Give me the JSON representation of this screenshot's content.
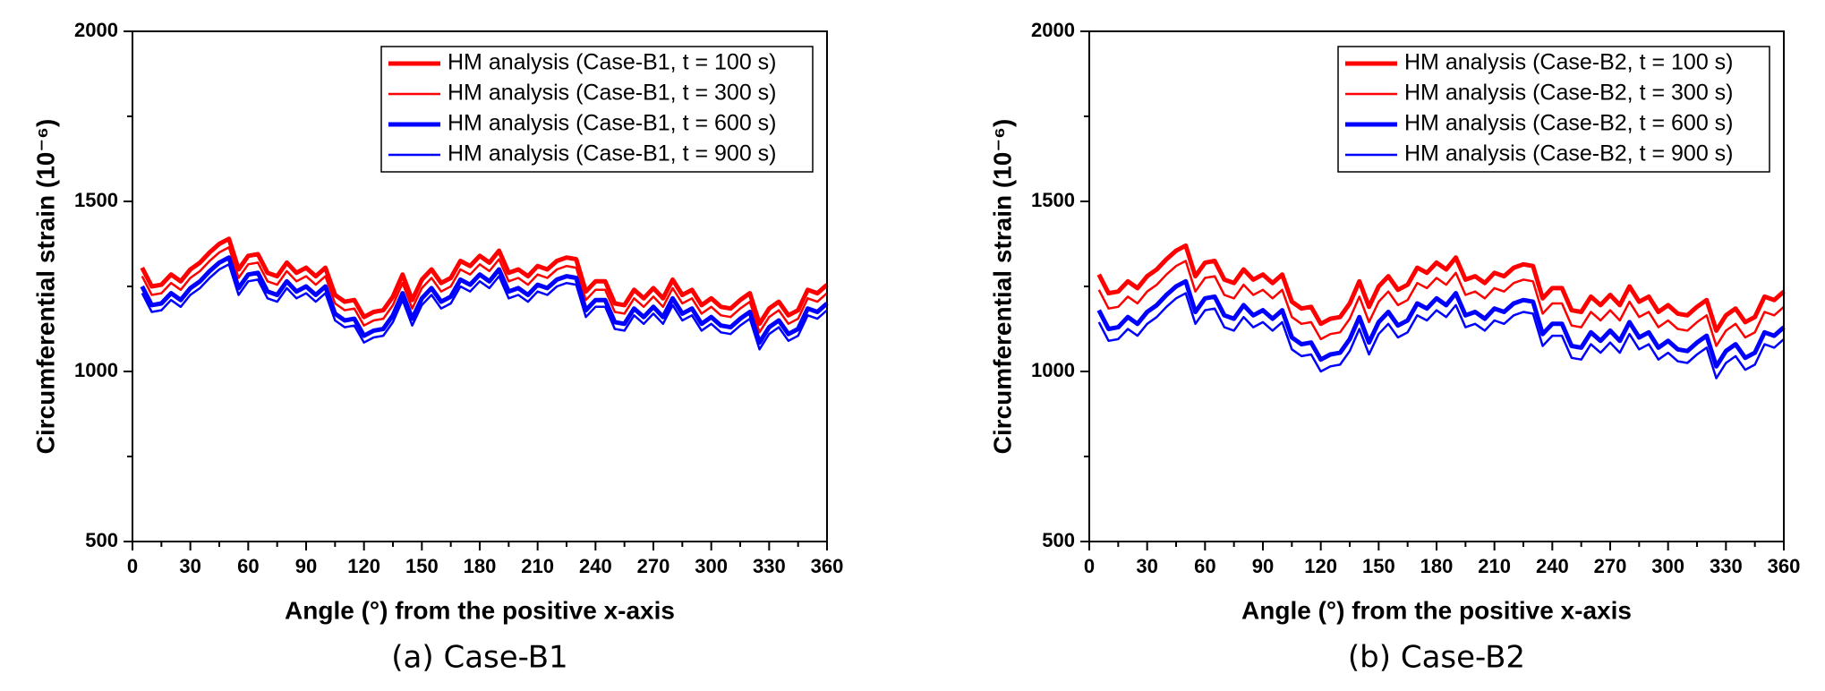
{
  "chart_data": [
    {
      "type": "line",
      "caption": "(a) Case-B1",
      "xlabel": "Angle (°) from the positive x-axis",
      "ylabel": "Circumferential strain (10⁻⁶)",
      "xlim": [
        0,
        360
      ],
      "xticks": [
        0,
        30,
        60,
        90,
        120,
        150,
        180,
        210,
        240,
        270,
        300,
        330,
        360
      ],
      "ylim": [
        500,
        2000
      ],
      "yticks": [
        500,
        1000,
        1500,
        2000
      ],
      "legend": "upper right",
      "x": [
        5,
        10,
        15,
        20,
        25,
        30,
        35,
        40,
        45,
        50,
        55,
        60,
        65,
        70,
        75,
        80,
        85,
        90,
        95,
        100,
        105,
        110,
        115,
        120,
        125,
        130,
        135,
        140,
        145,
        150,
        155,
        160,
        165,
        170,
        175,
        180,
        185,
        190,
        195,
        200,
        205,
        210,
        215,
        220,
        225,
        230,
        235,
        240,
        245,
        250,
        255,
        260,
        265,
        270,
        275,
        280,
        285,
        290,
        295,
        300,
        305,
        310,
        315,
        320,
        325,
        330,
        335,
        340,
        345,
        350,
        355,
        360
      ],
      "series": [
        {
          "name": "HM analysis (Case-B1, t = 100 s)",
          "color": "#ff0000",
          "linewidth": 5,
          "values": [
            1305,
            1250,
            1255,
            1285,
            1265,
            1300,
            1320,
            1350,
            1375,
            1390,
            1300,
            1340,
            1345,
            1290,
            1280,
            1320,
            1290,
            1305,
            1280,
            1305,
            1225,
            1205,
            1210,
            1160,
            1175,
            1180,
            1220,
            1285,
            1210,
            1270,
            1300,
            1260,
            1275,
            1325,
            1310,
            1340,
            1320,
            1355,
            1290,
            1300,
            1280,
            1310,
            1300,
            1325,
            1335,
            1330,
            1235,
            1265,
            1265,
            1200,
            1195,
            1240,
            1215,
            1245,
            1215,
            1270,
            1225,
            1240,
            1195,
            1215,
            1190,
            1185,
            1210,
            1230,
            1140,
            1185,
            1205,
            1165,
            1180,
            1240,
            1230,
            1255
          ]
        },
        {
          "name": "HM analysis (Case-B1, t = 300 s)",
          "color": "#ff0000",
          "linewidth": 2.5,
          "values": [
            1280,
            1225,
            1230,
            1260,
            1240,
            1275,
            1295,
            1325,
            1350,
            1365,
            1275,
            1315,
            1320,
            1265,
            1255,
            1295,
            1265,
            1280,
            1255,
            1280,
            1200,
            1180,
            1185,
            1135,
            1150,
            1155,
            1195,
            1260,
            1185,
            1245,
            1275,
            1235,
            1250,
            1300,
            1285,
            1315,
            1295,
            1330,
            1265,
            1275,
            1255,
            1285,
            1275,
            1300,
            1310,
            1305,
            1210,
            1240,
            1240,
            1175,
            1170,
            1215,
            1190,
            1220,
            1190,
            1245,
            1200,
            1215,
            1170,
            1190,
            1165,
            1160,
            1185,
            1205,
            1115,
            1160,
            1180,
            1140,
            1155,
            1215,
            1205,
            1230
          ]
        },
        {
          "name": "HM analysis (Case-B1, t = 600 s)",
          "color": "#0000ff",
          "linewidth": 5,
          "values": [
            1250,
            1195,
            1200,
            1230,
            1210,
            1245,
            1265,
            1295,
            1320,
            1335,
            1245,
            1285,
            1290,
            1235,
            1225,
            1265,
            1235,
            1250,
            1225,
            1250,
            1170,
            1150,
            1155,
            1105,
            1120,
            1125,
            1165,
            1230,
            1155,
            1215,
            1245,
            1205,
            1220,
            1270,
            1255,
            1285,
            1265,
            1300,
            1235,
            1245,
            1225,
            1255,
            1245,
            1270,
            1280,
            1275,
            1180,
            1210,
            1210,
            1145,
            1140,
            1185,
            1160,
            1190,
            1160,
            1215,
            1170,
            1185,
            1140,
            1160,
            1135,
            1130,
            1155,
            1175,
            1085,
            1130,
            1150,
            1110,
            1125,
            1185,
            1175,
            1200
          ]
        },
        {
          "name": "HM analysis (Case-B1, t = 900 s)",
          "color": "#0000ff",
          "linewidth": 2.5,
          "values": [
            1230,
            1175,
            1180,
            1210,
            1190,
            1225,
            1245,
            1275,
            1300,
            1315,
            1225,
            1265,
            1270,
            1215,
            1205,
            1245,
            1215,
            1230,
            1205,
            1230,
            1150,
            1130,
            1135,
            1085,
            1100,
            1105,
            1145,
            1210,
            1135,
            1195,
            1225,
            1185,
            1200,
            1250,
            1235,
            1265,
            1245,
            1280,
            1215,
            1225,
            1205,
            1235,
            1225,
            1250,
            1260,
            1255,
            1160,
            1190,
            1190,
            1125,
            1120,
            1165,
            1140,
            1170,
            1140,
            1195,
            1150,
            1165,
            1120,
            1140,
            1115,
            1110,
            1135,
            1155,
            1065,
            1110,
            1130,
            1090,
            1105,
            1165,
            1155,
            1180
          ]
        }
      ]
    },
    {
      "type": "line",
      "caption": "(b) Case-B2",
      "xlabel": "Angle (°) from the positive x-axis",
      "ylabel": "Circumferential strain (10⁻⁶)",
      "xlim": [
        0,
        360
      ],
      "xticks": [
        0,
        30,
        60,
        90,
        120,
        150,
        180,
        210,
        240,
        270,
        300,
        330,
        360
      ],
      "ylim": [
        500,
        2000
      ],
      "yticks": [
        500,
        1000,
        1500,
        2000
      ],
      "legend": "upper right",
      "x": [
        5,
        10,
        15,
        20,
        25,
        30,
        35,
        40,
        45,
        50,
        55,
        60,
        65,
        70,
        75,
        80,
        85,
        90,
        95,
        100,
        105,
        110,
        115,
        120,
        125,
        130,
        135,
        140,
        145,
        150,
        155,
        160,
        165,
        170,
        175,
        180,
        185,
        190,
        195,
        200,
        205,
        210,
        215,
        220,
        225,
        230,
        235,
        240,
        245,
        250,
        255,
        260,
        265,
        270,
        275,
        280,
        285,
        290,
        295,
        300,
        305,
        310,
        315,
        320,
        325,
        330,
        335,
        340,
        345,
        350,
        355,
        360
      ],
      "series": [
        {
          "name": "HM analysis (Case-B2, t = 100 s)",
          "color": "#ff0000",
          "linewidth": 5,
          "values": [
            1285,
            1230,
            1235,
            1265,
            1245,
            1280,
            1300,
            1330,
            1355,
            1370,
            1280,
            1320,
            1325,
            1270,
            1260,
            1300,
            1270,
            1285,
            1260,
            1285,
            1205,
            1185,
            1190,
            1140,
            1155,
            1160,
            1200,
            1265,
            1190,
            1250,
            1280,
            1240,
            1255,
            1305,
            1290,
            1320,
            1300,
            1335,
            1270,
            1280,
            1260,
            1290,
            1280,
            1305,
            1315,
            1310,
            1215,
            1245,
            1245,
            1180,
            1175,
            1220,
            1195,
            1225,
            1195,
            1250,
            1205,
            1220,
            1175,
            1195,
            1170,
            1165,
            1190,
            1210,
            1120,
            1165,
            1185,
            1145,
            1160,
            1220,
            1210,
            1235
          ]
        },
        {
          "name": "HM analysis (Case-B2, t = 300 s)",
          "color": "#ff0000",
          "linewidth": 2.5,
          "values": [
            1240,
            1185,
            1190,
            1220,
            1200,
            1235,
            1255,
            1285,
            1310,
            1325,
            1235,
            1275,
            1280,
            1225,
            1215,
            1255,
            1225,
            1240,
            1215,
            1240,
            1160,
            1140,
            1145,
            1095,
            1110,
            1115,
            1155,
            1220,
            1145,
            1205,
            1235,
            1195,
            1210,
            1260,
            1245,
            1275,
            1255,
            1290,
            1225,
            1235,
            1215,
            1245,
            1235,
            1260,
            1270,
            1265,
            1170,
            1200,
            1200,
            1135,
            1130,
            1175,
            1150,
            1180,
            1150,
            1205,
            1160,
            1175,
            1130,
            1150,
            1125,
            1120,
            1145,
            1165,
            1075,
            1120,
            1140,
            1100,
            1115,
            1175,
            1165,
            1190
          ]
        },
        {
          "name": "HM analysis (Case-B2, t = 600 s)",
          "color": "#0000ff",
          "linewidth": 5,
          "values": [
            1180,
            1125,
            1130,
            1160,
            1140,
            1175,
            1195,
            1225,
            1250,
            1265,
            1175,
            1215,
            1220,
            1165,
            1155,
            1195,
            1165,
            1180,
            1155,
            1180,
            1100,
            1080,
            1085,
            1035,
            1050,
            1055,
            1095,
            1160,
            1085,
            1145,
            1175,
            1135,
            1150,
            1200,
            1185,
            1215,
            1195,
            1230,
            1165,
            1175,
            1155,
            1185,
            1175,
            1200,
            1210,
            1205,
            1110,
            1140,
            1140,
            1075,
            1070,
            1115,
            1090,
            1120,
            1090,
            1145,
            1100,
            1115,
            1070,
            1090,
            1065,
            1060,
            1085,
            1105,
            1015,
            1060,
            1080,
            1040,
            1055,
            1115,
            1105,
            1130
          ]
        },
        {
          "name": "HM analysis (Case-B2, t = 900 s)",
          "color": "#0000ff",
          "linewidth": 2.5,
          "values": [
            1145,
            1090,
            1095,
            1125,
            1105,
            1140,
            1160,
            1190,
            1215,
            1230,
            1140,
            1180,
            1185,
            1130,
            1120,
            1160,
            1130,
            1145,
            1120,
            1145,
            1065,
            1045,
            1050,
            1000,
            1015,
            1020,
            1060,
            1125,
            1050,
            1110,
            1140,
            1100,
            1115,
            1165,
            1150,
            1180,
            1160,
            1195,
            1130,
            1140,
            1120,
            1150,
            1140,
            1165,
            1175,
            1170,
            1075,
            1105,
            1105,
            1040,
            1035,
            1080,
            1055,
            1085,
            1055,
            1110,
            1065,
            1080,
            1035,
            1055,
            1030,
            1025,
            1050,
            1070,
            980,
            1025,
            1045,
            1005,
            1020,
            1080,
            1070,
            1095
          ]
        }
      ]
    }
  ]
}
